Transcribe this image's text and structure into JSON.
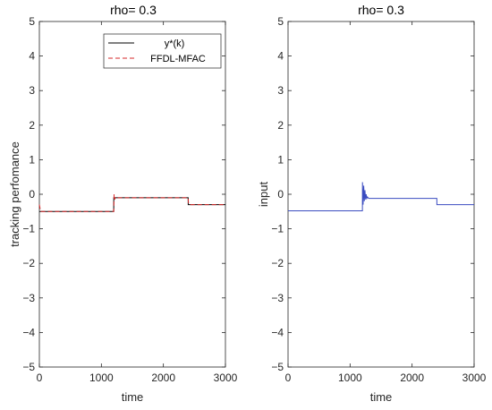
{
  "chart_data": [
    {
      "type": "line",
      "title": "rho= 0.3",
      "xlabel": "time",
      "ylabel": "tracking performance",
      "ylabel_text": "tracking perfomance",
      "xlim": [
        0,
        3000
      ],
      "ylim": [
        -5,
        5
      ],
      "xticks": [
        0,
        1000,
        2000,
        3000
      ],
      "yticks": [
        -5,
        -4,
        -3,
        -2,
        -1,
        0,
        1,
        2,
        3,
        4,
        5
      ],
      "grid": false,
      "legend_position": "top-right",
      "series": [
        {
          "name": "y*(k)",
          "color": "#000000",
          "style": "solid",
          "x": [
            0,
            1199,
            1200,
            2399,
            2400,
            3000
          ],
          "y": [
            -0.5,
            -0.5,
            -0.1,
            -0.1,
            -0.3,
            -0.3
          ]
        },
        {
          "name": "FFDL-MFAC",
          "color": "#d62728",
          "style": "dashed",
          "x": [
            0,
            20,
            40,
            1199,
            1205,
            1215,
            1230,
            1260,
            2399,
            2405,
            2420,
            3000
          ],
          "y": [
            -0.3,
            -0.5,
            -0.5,
            -0.5,
            0.0,
            -0.15,
            -0.08,
            -0.1,
            -0.1,
            -0.28,
            -0.3,
            -0.3
          ]
        }
      ]
    },
    {
      "type": "line",
      "title": "rho= 0.3",
      "xlabel": "time",
      "ylabel": "input",
      "xlim": [
        0,
        3000
      ],
      "ylim": [
        -5,
        5
      ],
      "xticks": [
        0,
        1000,
        2000,
        3000
      ],
      "yticks": [
        -5,
        -4,
        -3,
        -2,
        -1,
        0,
        1,
        2,
        3,
        4,
        5
      ],
      "grid": false,
      "series": [
        {
          "color": "#3b4cc0",
          "style": "solid",
          "x": [
            0,
            1199,
            1200,
            1210,
            1220,
            1230,
            1240,
            1250,
            1260,
            1270,
            1280,
            1300,
            2399,
            2400,
            3000
          ],
          "y": [
            -0.48,
            -0.48,
            0.35,
            -0.3,
            0.25,
            -0.2,
            0.12,
            -0.15,
            0.0,
            -0.12,
            -0.08,
            -0.12,
            -0.12,
            -0.3,
            -0.3
          ]
        }
      ]
    }
  ]
}
